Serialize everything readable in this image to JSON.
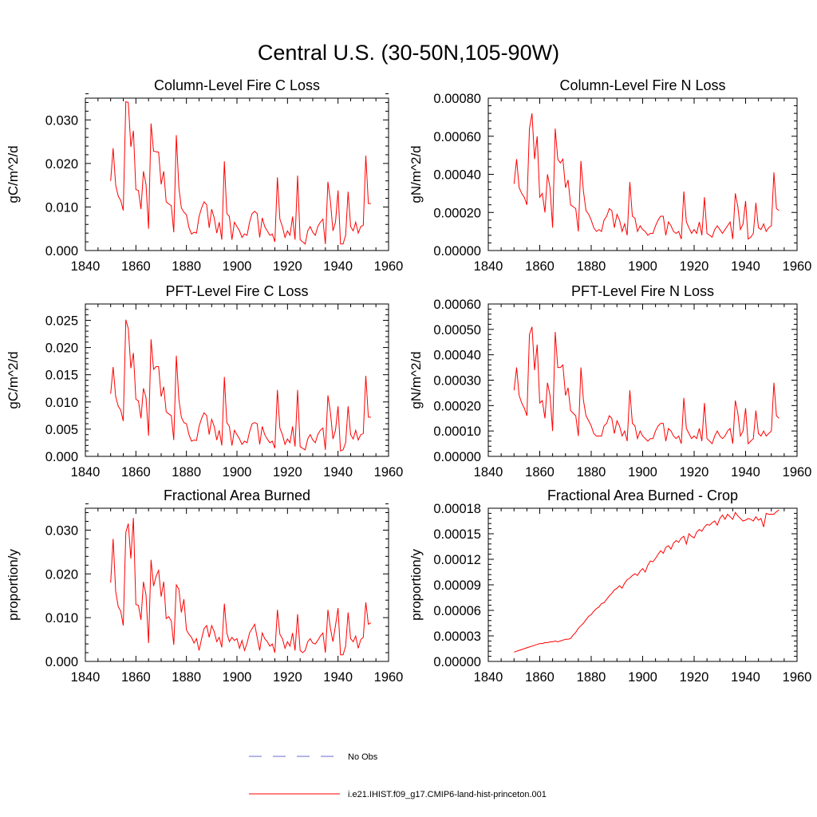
{
  "figure": {
    "title": "Central U.S. (30-50N,105-90W)"
  },
  "legend": {
    "items": [
      {
        "label": "No Obs",
        "color": "#6a6ad8",
        "style": "dashed"
      },
      {
        "label": "i.e21.IHIST.f09_g17.CMIP6-land-hist-princeton.001",
        "color": "#ff0000",
        "style": "solid"
      }
    ]
  },
  "chart_data": [
    {
      "type": "line",
      "title": "Column-Level Fire C Loss",
      "ylabel": "gC/m^2/d",
      "xlim": [
        1840,
        1960
      ],
      "ylim": [
        0,
        0.035
      ],
      "xticks": [
        1840,
        1860,
        1880,
        1900,
        1920,
        1940,
        1960
      ],
      "yticks": [
        0,
        0.01,
        0.02,
        0.03
      ],
      "ytick_labels": [
        "0.000",
        "0.010",
        "0.020",
        "0.030"
      ],
      "x_start": 1850,
      "series": [
        {
          "values": [
            0.016,
            0.0235,
            0.015,
            0.0125,
            0.0115,
            0.0092,
            0.0342,
            0.034,
            0.0238,
            0.0275,
            0.014,
            0.0138,
            0.0095,
            0.0182,
            0.0152,
            0.005,
            0.0292,
            0.0228,
            0.0227,
            0.0226,
            0.0152,
            0.0182,
            0.0112,
            0.0107,
            0.0103,
            0.0042,
            0.0265,
            0.0145,
            0.0098,
            0.0088,
            0.0082,
            0.0053,
            0.0038,
            0.0042,
            0.004,
            0.0078,
            0.0098,
            0.0112,
            0.0105,
            0.0052,
            0.0095,
            0.0075,
            0.004,
            0.0065,
            0.0025,
            0.0205,
            0.0085,
            0.0078,
            0.0025,
            0.0065,
            0.0055,
            0.0045,
            0.003,
            0.0038,
            0.0035,
            0.0065,
            0.0085,
            0.009,
            0.0085,
            0.003,
            0.0075,
            0.0055,
            0.0045,
            0.0035,
            0.0038,
            0.002,
            0.0168,
            0.0072,
            0.0055,
            0.003,
            0.0045,
            0.0035,
            0.0078,
            0.0025,
            0.0172,
            0.0025,
            0.002,
            0.0015,
            0.0045,
            0.0055,
            0.0042,
            0.0035,
            0.0055,
            0.0065,
            0.0072,
            0.0015,
            0.0158,
            0.0112,
            0.0045,
            0.0065,
            0.0138,
            0.0015,
            0.0015,
            0.0035,
            0.0135,
            0.0055,
            0.0045,
            0.0065,
            0.004,
            0.0055,
            0.0058,
            0.0218,
            0.0108,
            0.0108
          ]
        }
      ]
    },
    {
      "type": "line",
      "title": "Column-Level Fire N Loss",
      "ylabel": "gN/m^2/d",
      "xlim": [
        1840,
        1960
      ],
      "ylim": [
        0,
        0.0008
      ],
      "xticks": [
        1840,
        1860,
        1880,
        1900,
        1920,
        1940,
        1960
      ],
      "yticks": [
        0,
        0.0002,
        0.0004,
        0.0006,
        0.0008
      ],
      "ytick_labels": [
        "0.00000",
        "0.00020",
        "0.00040",
        "0.00060",
        "0.00080"
      ],
      "x_start": 1850,
      "series": [
        {
          "values": [
            0.00035,
            0.00048,
            0.00033,
            0.0003,
            0.00028,
            0.00024,
            0.00064,
            0.00072,
            0.00048,
            0.0006,
            0.00028,
            0.0003,
            0.0002,
            0.0004,
            0.00033,
            0.00012,
            0.00064,
            0.00048,
            0.00046,
            0.00048,
            0.00033,
            0.00037,
            0.00024,
            0.00023,
            0.00022,
            0.0001,
            0.00047,
            0.00031,
            0.00021,
            0.00019,
            0.00016,
            0.00012,
            0.0001,
            0.00011,
            0.0001,
            0.00016,
            0.00018,
            0.00022,
            0.00021,
            0.00012,
            0.00019,
            0.00016,
            0.0001,
            0.00014,
            8e-05,
            0.00036,
            0.00018,
            0.00017,
            0.0001,
            0.00013,
            0.00011,
            0.0001,
            8e-05,
            9e-05,
            9e-05,
            0.00013,
            0.00016,
            0.00018,
            0.00018,
            8e-05,
            0.00015,
            0.00013,
            0.0001,
            9e-05,
            0.0001,
            6e-05,
            0.00031,
            0.00015,
            0.00012,
            9e-05,
            0.00011,
            9e-05,
            0.00015,
            8e-05,
            0.00028,
            9e-05,
            8e-05,
            7e-05,
            0.00011,
            0.00013,
            0.00011,
            9e-05,
            0.00011,
            0.00013,
            0.00015,
            6e-05,
            0.0003,
            0.00023,
            0.00011,
            0.00014,
            0.00026,
            6e-05,
            7e-05,
            9e-05,
            0.00025,
            0.00012,
            0.00011,
            0.00014,
            0.0001,
            0.00012,
            0.00013,
            0.00041,
            0.00022,
            0.00021
          ]
        }
      ]
    },
    {
      "type": "line",
      "title": "PFT-Level Fire C Loss",
      "ylabel": "gC/m^2/d",
      "xlim": [
        1840,
        1960
      ],
      "ylim": [
        0,
        0.028
      ],
      "xticks": [
        1840,
        1860,
        1880,
        1900,
        1920,
        1940,
        1960
      ],
      "yticks": [
        0,
        0.005,
        0.01,
        0.015,
        0.02,
        0.025
      ],
      "ytick_labels": [
        "0.000",
        "0.005",
        "0.010",
        "0.015",
        "0.020",
        "0.025"
      ],
      "x_start": 1850,
      "series": [
        {
          "values": [
            0.0115,
            0.0164,
            0.011,
            0.0092,
            0.0085,
            0.0065,
            0.0251,
            0.0235,
            0.0162,
            0.019,
            0.0105,
            0.0102,
            0.007,
            0.0125,
            0.0108,
            0.0038,
            0.0215,
            0.016,
            0.0165,
            0.0165,
            0.011,
            0.0128,
            0.0082,
            0.0078,
            0.0075,
            0.003,
            0.0185,
            0.0105,
            0.0072,
            0.0062,
            0.006,
            0.004,
            0.0028,
            0.003,
            0.0029,
            0.0055,
            0.007,
            0.008,
            0.0075,
            0.004,
            0.0068,
            0.0055,
            0.003,
            0.0048,
            0.002,
            0.0146,
            0.0062,
            0.0055,
            0.002,
            0.0048,
            0.004,
            0.0032,
            0.0022,
            0.0028,
            0.0025,
            0.0045,
            0.006,
            0.0062,
            0.006,
            0.0022,
            0.0055,
            0.004,
            0.0032,
            0.0025,
            0.0028,
            0.0015,
            0.0122,
            0.0052,
            0.004,
            0.0022,
            0.0032,
            0.0025,
            0.0055,
            0.0018,
            0.0122,
            0.0018,
            0.0015,
            0.0012,
            0.0032,
            0.004,
            0.003,
            0.0025,
            0.004,
            0.0048,
            0.0052,
            0.0012,
            0.0112,
            0.008,
            0.0032,
            0.0048,
            0.0092,
            0.001,
            0.0012,
            0.0025,
            0.0092,
            0.004,
            0.0032,
            0.0048,
            0.003,
            0.004,
            0.0042,
            0.0148,
            0.0072,
            0.0072
          ]
        }
      ]
    },
    {
      "type": "line",
      "title": "PFT-Level Fire N Loss",
      "ylabel": "gN/m^2/d",
      "xlim": [
        1840,
        1960
      ],
      "ylim": [
        0,
        0.0006
      ],
      "xticks": [
        1840,
        1860,
        1880,
        1900,
        1920,
        1940,
        1960
      ],
      "yticks": [
        0,
        0.0001,
        0.0002,
        0.0003,
        0.0004,
        0.0005,
        0.0006
      ],
      "ytick_labels": [
        "0.00000",
        "0.00010",
        "0.00020",
        "0.00030",
        "0.00040",
        "0.00050",
        "0.00060"
      ],
      "x_start": 1850,
      "series": [
        {
          "values": [
            0.00026,
            0.00035,
            0.00024,
            0.00021,
            0.00019,
            0.00016,
            0.00048,
            0.00051,
            0.00034,
            0.00044,
            0.00021,
            0.00022,
            0.00015,
            0.00029,
            0.00024,
            0.0001,
            0.00049,
            0.00035,
            0.00035,
            0.00036,
            0.00024,
            0.00027,
            0.00018,
            0.00017,
            0.00016,
            8e-05,
            0.00035,
            0.00022,
            0.00016,
            0.00014,
            0.00012,
            9e-05,
            8e-05,
            8e-05,
            8e-05,
            0.00012,
            0.00013,
            0.00016,
            0.00015,
            9e-05,
            0.00014,
            0.00012,
            8e-05,
            0.0001,
            6e-05,
            0.00026,
            0.00013,
            0.00012,
            7e-05,
            0.0001,
            8e-05,
            7e-05,
            6e-05,
            7e-05,
            7e-05,
            0.0001,
            0.00012,
            0.00013,
            0.00013,
            6e-05,
            0.00011,
            0.0001,
            8e-05,
            7e-05,
            8e-05,
            5e-05,
            0.00023,
            0.00011,
            9e-05,
            7e-05,
            8e-05,
            7e-05,
            0.00011,
            6e-05,
            0.00021,
            7e-05,
            6e-05,
            5e-05,
            8e-05,
            0.0001,
            8e-05,
            7e-05,
            8e-05,
            0.0001,
            0.00011,
            5e-05,
            0.00022,
            0.00017,
            8e-05,
            0.0001,
            0.00019,
            5e-05,
            6e-05,
            7e-05,
            0.00018,
            9e-05,
            8e-05,
            0.0001,
            8e-05,
            9e-05,
            0.0001,
            0.00029,
            0.00016,
            0.00015
          ]
        }
      ]
    },
    {
      "type": "line",
      "title": "Fractional Area Burned",
      "ylabel": "proportion/y",
      "xlim": [
        1840,
        1960
      ],
      "ylim": [
        0,
        0.035
      ],
      "xticks": [
        1840,
        1860,
        1880,
        1900,
        1920,
        1940,
        1960
      ],
      "yticks": [
        0,
        0.01,
        0.02,
        0.03
      ],
      "ytick_labels": [
        "0.000",
        "0.010",
        "0.020",
        "0.030"
      ],
      "x_start": 1850,
      "series": [
        {
          "values": [
            0.018,
            0.028,
            0.016,
            0.0125,
            0.0115,
            0.0082,
            0.0295,
            0.0315,
            0.0235,
            0.0328,
            0.013,
            0.0128,
            0.0095,
            0.0182,
            0.0152,
            0.0042,
            0.0232,
            0.0172,
            0.0195,
            0.0208,
            0.0148,
            0.0182,
            0.0098,
            0.0102,
            0.0092,
            0.0038,
            0.0175,
            0.0165,
            0.0112,
            0.0142,
            0.0072,
            0.0062,
            0.0055,
            0.0042,
            0.0052,
            0.0025,
            0.0052,
            0.0075,
            0.0082,
            0.0055,
            0.0082,
            0.0068,
            0.0045,
            0.0055,
            0.0032,
            0.0132,
            0.0065,
            0.0045,
            0.0055,
            0.0048,
            0.0052,
            0.003,
            0.0048,
            0.0025,
            0.0042,
            0.0065,
            0.0075,
            0.0085,
            0.0055,
            0.0025,
            0.0065,
            0.0052,
            0.0045,
            0.0035,
            0.004,
            0.002,
            0.0118,
            0.0062,
            0.0052,
            0.003,
            0.0045,
            0.0035,
            0.0065,
            0.0025,
            0.0108,
            0.0025,
            0.002,
            0.0025,
            0.0045,
            0.0052,
            0.0042,
            0.004,
            0.0048,
            0.0058,
            0.0065,
            0.002,
            0.0118,
            0.0075,
            0.0045,
            0.0082,
            0.0122,
            0.0015,
            0.0015,
            0.0035,
            0.0112,
            0.0052,
            0.0045,
            0.0058,
            0.003,
            0.005,
            0.0055,
            0.0135,
            0.0085,
            0.0088
          ]
        }
      ]
    },
    {
      "type": "line",
      "title": "Fractional Area Burned - Crop",
      "ylabel": "proportion/y",
      "xlim": [
        1840,
        1960
      ],
      "ylim": [
        0,
        0.00018
      ],
      "xticks": [
        1840,
        1860,
        1880,
        1900,
        1920,
        1940,
        1960
      ],
      "yticks": [
        0,
        3e-05,
        6e-05,
        9e-05,
        0.00012,
        0.00015,
        0.00018
      ],
      "ytick_labels": [
        "0.00000",
        "0.00003",
        "0.00006",
        "0.00009",
        "0.00012",
        "0.00015",
        "0.00018"
      ],
      "x_start": 1850,
      "series": [
        {
          "values": [
            1.1e-05,
            1.2e-05,
            1.3e-05,
            1.4e-05,
            1.5e-05,
            1.6e-05,
            1.7e-05,
            1.8e-05,
            1.9e-05,
            2e-05,
            2.1e-05,
            2.1e-05,
            2.2e-05,
            2.2e-05,
            2.3e-05,
            2.3e-05,
            2.4e-05,
            2.3e-05,
            2.4e-05,
            2.5e-05,
            2.6e-05,
            2.6e-05,
            2.7e-05,
            3.1e-05,
            3.4e-05,
            3.9e-05,
            4.2e-05,
            4.5e-05,
            4.9e-05,
            5.3e-05,
            5.5e-05,
            5.9e-05,
            6.2e-05,
            6.4e-05,
            6.8e-05,
            6.9e-05,
            7.3e-05,
            7.7e-05,
            8e-05,
            8.4e-05,
            8.6e-05,
            8.9e-05,
            8.6e-05,
            9.2e-05,
            9.6e-05,
            9.8e-05,
            0.000101,
            0.000103,
            0.000101,
            0.000106,
            0.000109,
            0.000105,
            0.000113,
            0.000118,
            0.000117,
            0.000121,
            0.000126,
            0.00013,
            0.000127,
            0.000134,
            0.000136,
            0.000132,
            0.000139,
            0.000142,
            0.00014,
            0.000145,
            0.000147,
            0.000138,
            0.00015,
            0.000147,
            0.000145,
            0.000152,
            0.000155,
            0.000153,
            0.000158,
            0.000161,
            0.00016,
            0.000163,
            0.000165,
            0.00016,
            0.000168,
            0.000172,
            0.000167,
            0.000173,
            0.00017,
            0.000167,
            0.000175,
            0.000171,
            0.000168,
            0.000165,
            0.000166,
            0.000168,
            0.000167,
            0.000165,
            0.00017,
            0.000166,
            0.000168,
            0.000158,
            0.000174,
            0.000173,
            0.000173,
            0.000173,
            0.000176,
            0.000178
          ]
        }
      ]
    }
  ]
}
